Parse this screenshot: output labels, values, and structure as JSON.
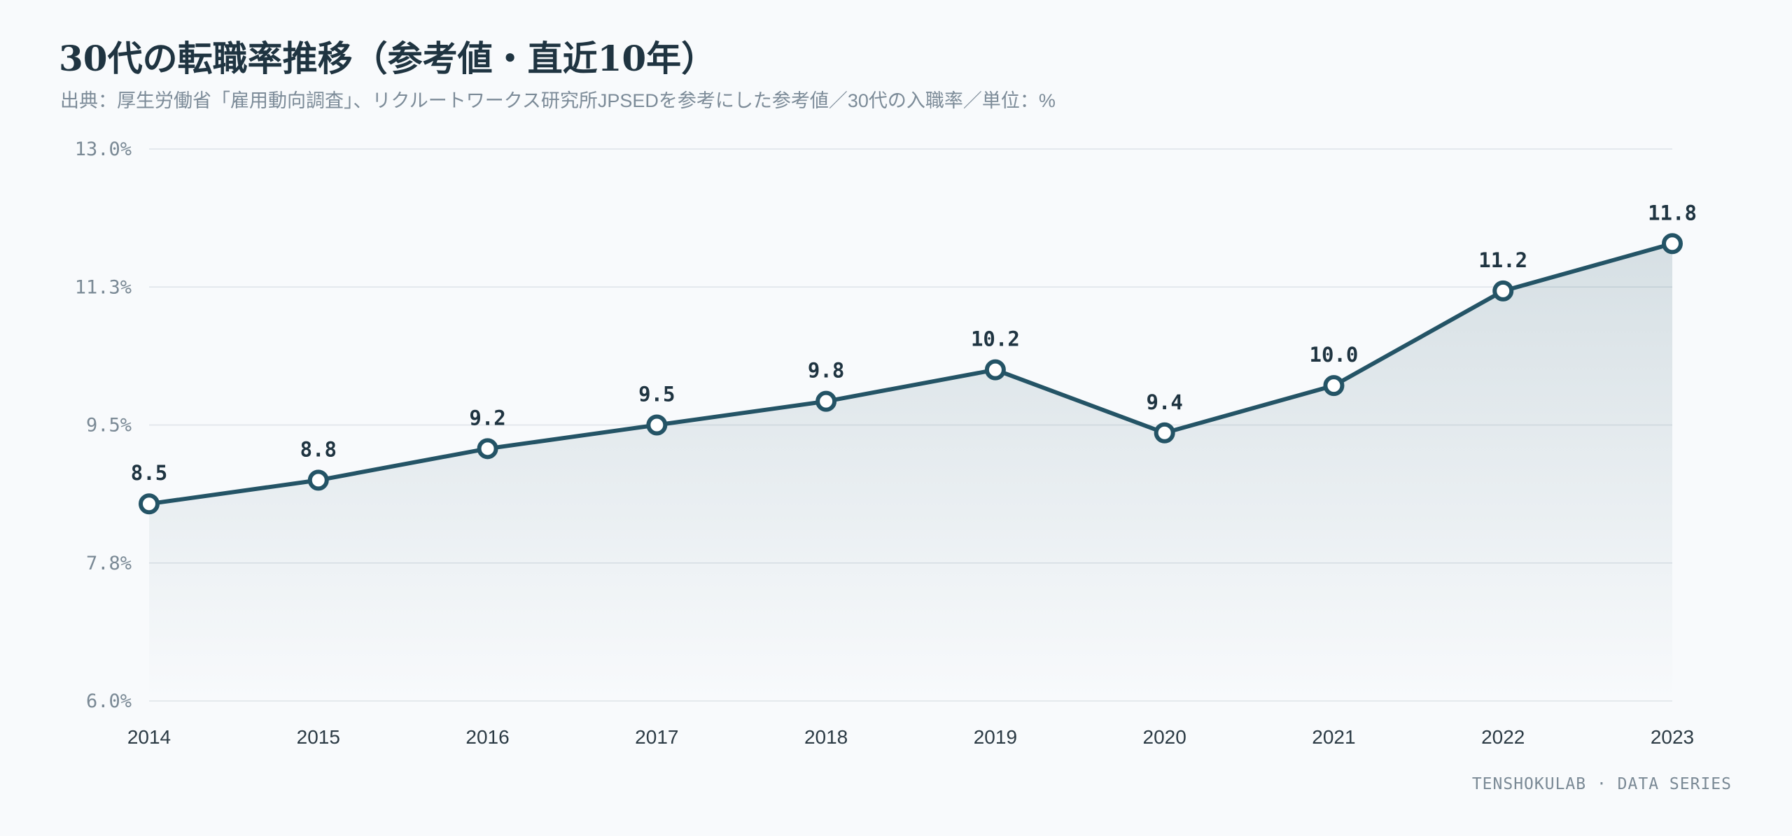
{
  "title": "30代の転職率推移（参考値・直近10年）",
  "subtitle": "出典：厚生労働省「雇用動向調査」、リクルートワークス研究所JPSEDを参考にした参考値／30代の入職率／単位：%",
  "footer": "TENSHOKULAB · DATA SERIES",
  "colors": {
    "line": "#245466",
    "grid": "#dde3e8",
    "background": "#f8fafc"
  },
  "chart_data": {
    "type": "line",
    "title": "30代の転職率推移（参考値・直近10年）",
    "x": [
      "2014",
      "2015",
      "2016",
      "2017",
      "2018",
      "2019",
      "2020",
      "2021",
      "2022",
      "2023"
    ],
    "series": [
      {
        "values": [
          8.5,
          8.8,
          9.2,
          9.5,
          9.8,
          10.2,
          9.4,
          10.0,
          11.2,
          11.8
        ],
        "data_labels": [
          "8.5",
          "8.8",
          "9.2",
          "9.5",
          "9.8",
          "10.2",
          "9.4",
          "10.0",
          "11.2",
          "11.8"
        ]
      }
    ],
    "ylim": [
      6.0,
      13.0
    ],
    "yticks": [
      6.0,
      7.75,
      9.5,
      11.25,
      13.0
    ],
    "ytick_labels": [
      "6.0%",
      "7.8%",
      "9.5%",
      "11.3%",
      "13.0%"
    ],
    "grid": true,
    "area_fill": true,
    "markers": "hollow-circle"
  }
}
